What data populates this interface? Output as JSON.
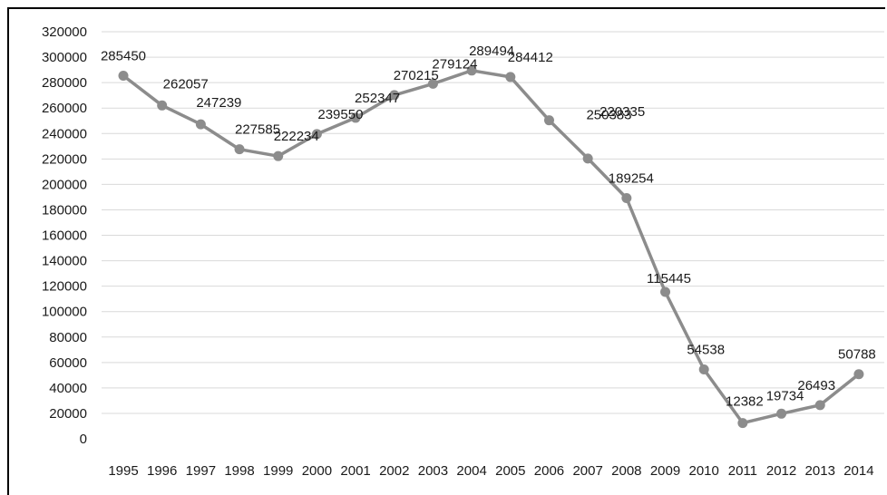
{
  "chart_data": {
    "type": "line",
    "title": "",
    "xlabel": "",
    "ylabel": "",
    "x": [
      "1995",
      "1996",
      "1997",
      "1998",
      "1999",
      "2000",
      "2001",
      "2002",
      "2003",
      "2004",
      "2005",
      "2006",
      "2007",
      "2008",
      "2009",
      "2010",
      "2011",
      "2012",
      "2013",
      "2014"
    ],
    "series": [
      {
        "values": [
          285450,
          262057,
          247239,
          227585,
          222234,
          239550,
          252347,
          270215,
          279124,
          289494,
          284412,
          250383,
          220335,
          189254,
          115445,
          54538,
          12382,
          19734,
          26493,
          50788
        ],
        "labels": [
          "285450",
          "262057",
          "247239",
          "227585",
          "222234",
          "239550",
          "252347",
          "270215",
          "279124",
          "289494",
          "284412",
          "250383",
          "220335",
          "189254",
          "115445",
          "54538",
          "12382",
          "19734",
          "26493",
          "50788"
        ]
      }
    ],
    "ylim": [
      0,
      320000
    ],
    "yticks": [
      0,
      20000,
      40000,
      60000,
      80000,
      100000,
      120000,
      140000,
      160000,
      180000,
      200000,
      220000,
      240000,
      260000,
      280000,
      300000,
      320000
    ],
    "ytick_labels": [
      "0",
      "20000",
      "40000",
      "60000",
      "80000",
      "100000",
      "120000",
      "140000",
      "160000",
      "180000",
      "200000",
      "220000",
      "240000",
      "260000",
      "280000",
      "300000",
      "320000"
    ],
    "grid": true,
    "legend": "none",
    "line_color": "#8c8c8c"
  }
}
